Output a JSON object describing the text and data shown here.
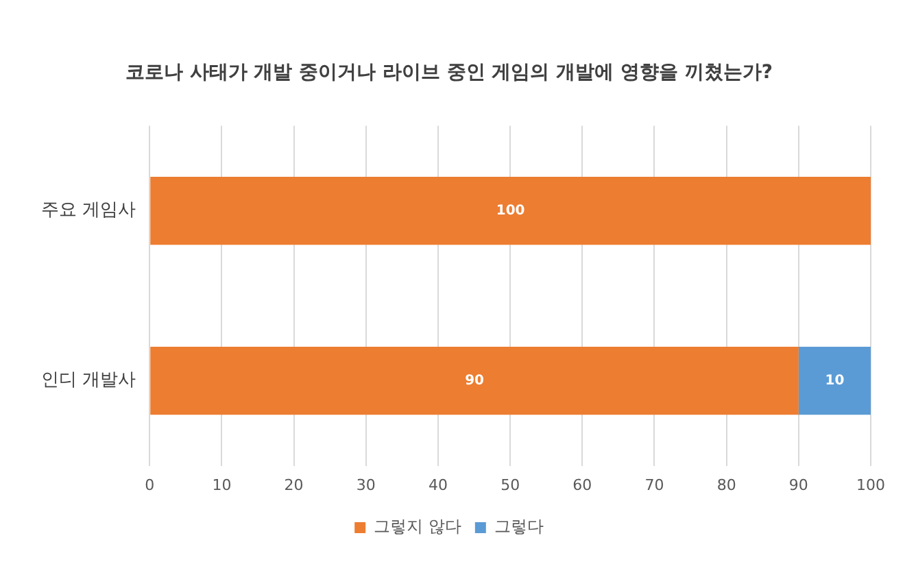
{
  "chart_data": {
    "type": "bar",
    "orientation": "horizontal",
    "stacked": true,
    "title": "코로나 사태가 개발 중이거나 라이브 중인 게임의 개발에 영향을 끼쳤는가?",
    "categories": [
      "주요 게임사",
      "인디 개발사"
    ],
    "series": [
      {
        "name": "그렇지 않다",
        "color": "#ed7d31",
        "values": [
          100,
          90
        ],
        "value_labels": [
          "100",
          "90"
        ]
      },
      {
        "name": "그렇다",
        "color": "#5b9bd5",
        "values": [
          0,
          10
        ],
        "value_labels": [
          null,
          "10"
        ]
      }
    ],
    "xlim": [
      0,
      100
    ],
    "xticks": [
      0,
      10,
      20,
      30,
      40,
      50,
      60,
      70,
      80,
      90,
      100
    ],
    "grid": "x",
    "legend": "bottom"
  }
}
